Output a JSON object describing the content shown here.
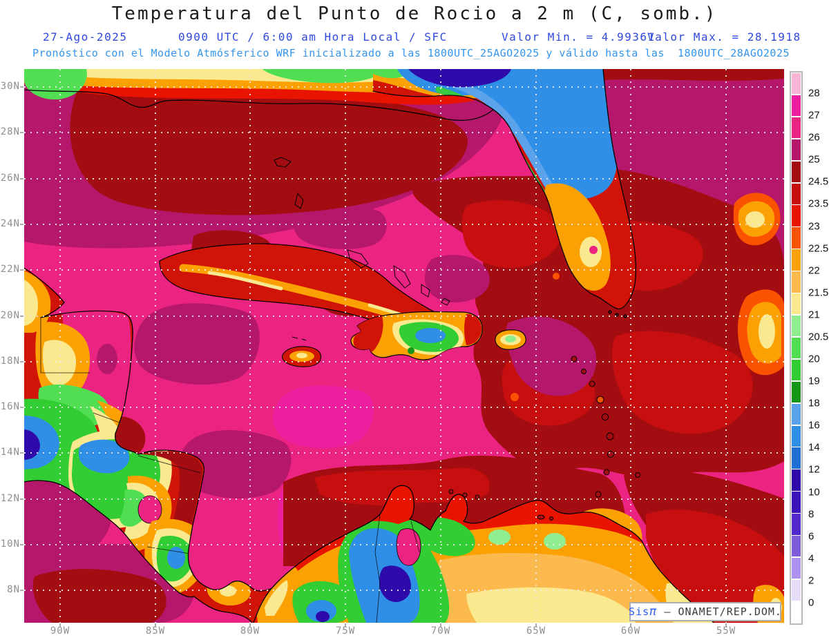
{
  "header": {
    "title": "Temperatura del Punto de Rocio a 2 m (C, somb.)",
    "date": "27-Ago-2025",
    "time_info": "0900 UTC / 6:00 am Hora Local / SFC",
    "valor_min": "Valor Min. = 4.99361",
    "valor_max": "Valor Max. = 28.1918",
    "forecast_line": "Pronóstico con el Modelo Atmósferico WRF inicializado a las 1800UTC_25AGO2025 y válido hasta las  1800UTC_28AGO2025",
    "title_color": "#1c1c1c",
    "subtitle_color": "#2f49dd",
    "forecast_color": "#3494ec"
  },
  "map": {
    "x_tick_labels": [
      "90W",
      "85W",
      "80W",
      "75W",
      "70W",
      "65W",
      "60W",
      "55W"
    ],
    "y_tick_labels": [
      "30N",
      "28N",
      "26N",
      "24N",
      "22N",
      "20N",
      "18N",
      "16N",
      "14N",
      "12N",
      "10N",
      "8N"
    ],
    "tick_label_color": "#8f8f8f",
    "grid": "dotted",
    "attribution": {
      "brand": "Sis",
      "pi": "π",
      "org": " – ONAMET/REP.DOM."
    }
  },
  "colorbar": {
    "labels": [
      "28",
      "27",
      "26",
      "25",
      "24.5",
      "23.5",
      "23",
      "22.5",
      "22",
      "21.5",
      "21",
      "20.5",
      "20",
      "19",
      "18",
      "16",
      "14",
      "12",
      "10",
      "8",
      "6",
      "4",
      "2",
      "0"
    ],
    "colors": [
      "#f7b4d5",
      "#ee1f9e",
      "#ec2481",
      "#b5186b",
      "#a30d12",
      "#c60f0e",
      "#e91400",
      "#fb5200",
      "#fca104",
      "#fbb94e",
      "#fae98e",
      "#90ee90",
      "#52de52",
      "#32cd32",
      "#169616",
      "#5aa2ea",
      "#2f8fe6",
      "#1f6fd4",
      "#2f0aaa",
      "#3c14bc",
      "#5228cc",
      "#7e5cd8",
      "#ae92f0",
      "#e6def8",
      "#ffffff"
    ]
  },
  "chart_data": {
    "type": "heatmap",
    "subtype": "filled_contour_weather_map",
    "title": "Temperatura del Punto de Rocio a 2 m (C, somb.)",
    "variable": "Dew point temperature at 2 m",
    "units": "C",
    "valid_date": "27-Ago-2025",
    "valid_time": "0900 UTC / 6:00 am Hora Local / SFC",
    "value_min": 4.99361,
    "value_max": 28.1918,
    "model": "WRF",
    "initialized": "1800UTC_25AGO2025",
    "valid_until": "1800UTC_28AGO2025",
    "region": "Caribbean / Gulf of Mexico / Central America / northern South America",
    "lon_ticks": [
      "90W",
      "85W",
      "80W",
      "75W",
      "70W",
      "65W",
      "60W",
      "55W"
    ],
    "lat_ticks": [
      "30N",
      "28N",
      "26N",
      "24N",
      "22N",
      "20N",
      "18N",
      "16N",
      "14N",
      "12N",
      "10N",
      "8N"
    ],
    "scale_levels_asc": [
      0,
      2,
      4,
      6,
      8,
      10,
      12,
      14,
      16,
      18,
      19,
      20,
      20.5,
      21,
      21.5,
      22,
      22.5,
      23,
      23.5,
      24.5,
      25,
      26,
      27,
      28
    ],
    "scale_colors_top_to_bottom": [
      "#f7b4d5",
      "#ee1f9e",
      "#ec2481",
      "#b5186b",
      "#a30d12",
      "#c60f0e",
      "#e91400",
      "#fb5200",
      "#fca104",
      "#fbb94e",
      "#fae98e",
      "#90ee90",
      "#52de52",
      "#32cd32",
      "#169616",
      "#5aa2ea",
      "#2f8fe6",
      "#1f6fd4",
      "#2f0aaa",
      "#3c14bc",
      "#5228cc",
      "#7e5cd8",
      "#ae92f0",
      "#e6def8",
      "#ffffff"
    ],
    "legend_position": "right",
    "notes": "Sea mostly 25-28C (magenta/crimson); dry (blue/green, 8-20C) cores over SE-US, mountains of Guatemala, Honduras, Costa Rica, Hispaniola interior, and Andes of Colombia/Venezuela"
  }
}
